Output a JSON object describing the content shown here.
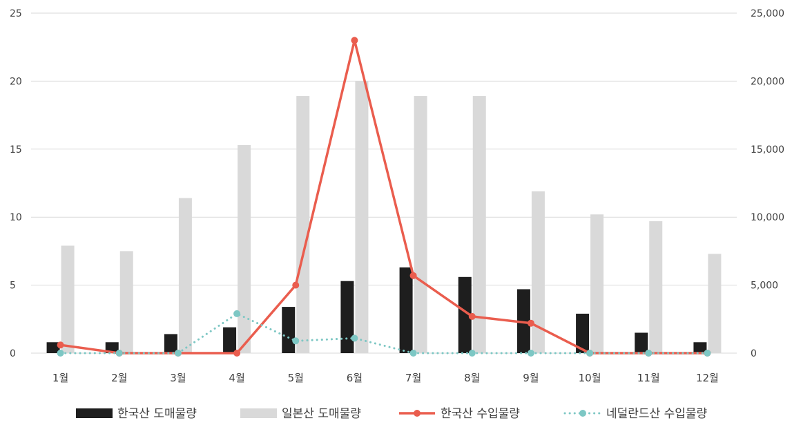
{
  "chart_data": {
    "type": "bar",
    "categories": [
      "1월",
      "2월",
      "3월",
      "4월",
      "5월",
      "6월",
      "7월",
      "8월",
      "9월",
      "10월",
      "11월",
      "12월"
    ],
    "y_left": {
      "ticks": [
        "0",
        "5",
        "10",
        "15",
        "20",
        "25"
      ],
      "ylim": [
        0,
        25
      ]
    },
    "y_right": {
      "ticks": [
        "0",
        "5,000",
        "10,000",
        "15,000",
        "20,000",
        "25,000"
      ],
      "ylim": [
        0,
        25000
      ]
    },
    "grid": true,
    "legend_position": "bottom",
    "series": [
      {
        "name": "한국산 도매물량",
        "type": "bar",
        "axis": "left",
        "color": "#1e1e1e",
        "values": [
          0.8,
          0.8,
          1.4,
          1.9,
          3.4,
          5.3,
          6.3,
          5.6,
          4.7,
          2.9,
          1.5,
          0.8
        ]
      },
      {
        "name": "일본산 도매물량",
        "type": "bar",
        "axis": "left",
        "color": "#d9d9d9",
        "values": [
          7.9,
          7.5,
          11.4,
          15.3,
          18.9,
          20.0,
          18.9,
          18.9,
          11.9,
          10.2,
          9.7,
          7.3
        ]
      },
      {
        "name": "한국산 수입물량",
        "type": "line",
        "axis": "right",
        "color": "#ea5d4e",
        "values": [
          600,
          0,
          0,
          0,
          5000,
          23000,
          5700,
          2700,
          2200,
          0,
          0,
          0
        ]
      },
      {
        "name": "네덜란드산 수입물량",
        "type": "line-dotted",
        "axis": "right",
        "color": "#7dc7c4",
        "values": [
          0,
          0,
          0,
          2900,
          900,
          1100,
          0,
          0,
          0,
          0,
          0,
          0
        ]
      }
    ]
  }
}
